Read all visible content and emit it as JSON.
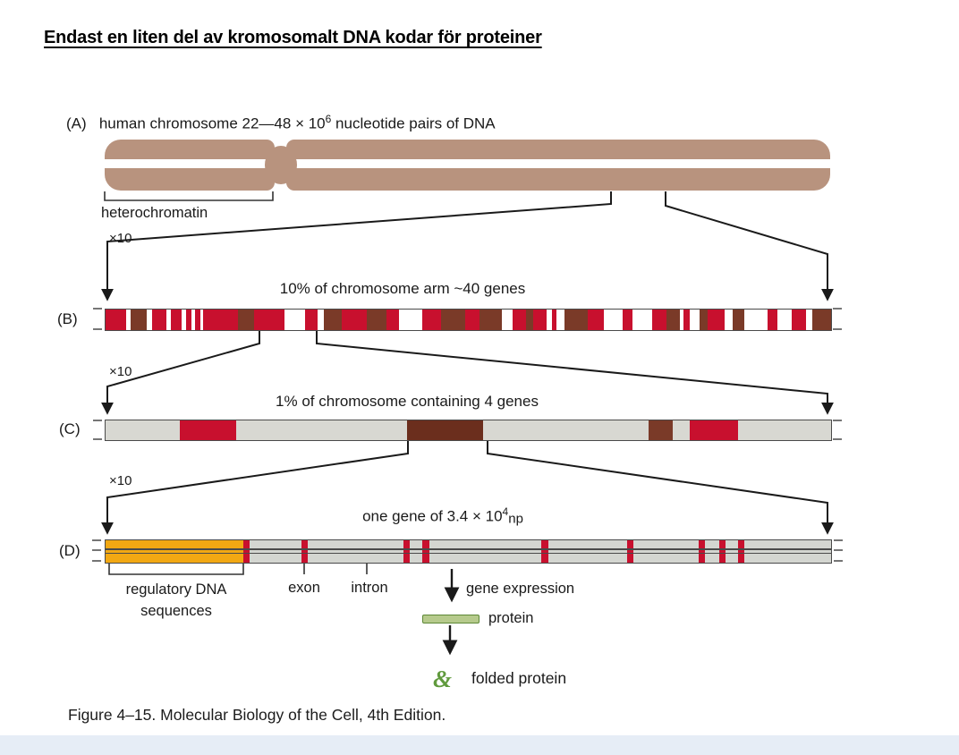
{
  "title": "Endast en liten del av kromosomalt DNA kodar för proteiner",
  "caption": "Figure 4–15. Molecular Biology of the Cell, 4th Edition.",
  "colors": {
    "tan": "#b8937e",
    "red": "#c8102e",
    "brown": "#7a3a28",
    "darkbrown": "#6b2e1d",
    "white": "#ffffff",
    "gray": "#d8d8d2",
    "ltgray": "#d4d6d1",
    "orange": "#f2a813",
    "protein_fill": "#b6ca8c",
    "protein_edge": "#5d8836",
    "fold_green": "#609a3d"
  },
  "section_a": {
    "label": "(A)",
    "heading_prefix": "human chromosome 22—48 × 10",
    "heading_sup": "6",
    "heading_suffix": " nucleotide pairs of DNA",
    "heterochromatin_label": "heterochromatin"
  },
  "section_b": {
    "label": "(B)",
    "scale_label": "×10",
    "heading": "10% of chromosome arm ~40 genes",
    "bands": [
      [
        "red",
        25
      ],
      [
        "white",
        6
      ],
      [
        "brown",
        20
      ],
      [
        "white",
        6
      ],
      [
        "red",
        18
      ],
      [
        "white",
        5
      ],
      [
        "red",
        13
      ],
      [
        "white",
        6
      ],
      [
        "red",
        6
      ],
      [
        "white",
        5
      ],
      [
        "red",
        6
      ],
      [
        "white",
        4
      ],
      [
        "red",
        42
      ],
      [
        "brown",
        20
      ],
      [
        "red",
        38
      ],
      [
        "white",
        25
      ],
      [
        "red",
        15
      ],
      [
        "white",
        8
      ],
      [
        "brown",
        22
      ],
      [
        "red",
        30
      ],
      [
        "brown",
        25
      ],
      [
        "red",
        15
      ],
      [
        "white",
        28
      ],
      [
        "red",
        23
      ],
      [
        "brown",
        30
      ],
      [
        "red",
        18
      ],
      [
        "brown",
        27
      ],
      [
        "white",
        13
      ],
      [
        "red",
        17
      ],
      [
        "brown",
        8
      ],
      [
        "red",
        17
      ],
      [
        "white",
        7
      ],
      [
        "red",
        5
      ],
      [
        "white",
        10
      ],
      [
        "brown",
        28
      ],
      [
        "red",
        20
      ],
      [
        "white",
        23
      ],
      [
        "red",
        12
      ],
      [
        "white",
        25
      ],
      [
        "red",
        17
      ],
      [
        "brown",
        17
      ],
      [
        "white",
        4
      ],
      [
        "red",
        8
      ],
      [
        "white",
        12
      ],
      [
        "brown",
        10
      ],
      [
        "red",
        20
      ],
      [
        "white",
        10
      ],
      [
        "brown",
        15
      ],
      [
        "white",
        28
      ],
      [
        "red",
        12
      ],
      [
        "white",
        18
      ],
      [
        "red",
        17
      ],
      [
        "white",
        8
      ],
      [
        "brown",
        23
      ]
    ]
  },
  "section_c": {
    "label": "(C)",
    "scale_label": "×10",
    "heading": "1% of chromosome containing 4 genes",
    "bands": [
      [
        "gray",
        10.2
      ],
      [
        "red",
        7.8
      ],
      [
        "gray",
        23.6
      ],
      [
        "darkbrown",
        10.4
      ],
      [
        "gray",
        22.9
      ],
      [
        "brown",
        3.3
      ],
      [
        "gray",
        2.3
      ],
      [
        "red",
        6.7
      ],
      [
        "gray",
        12.8
      ]
    ]
  },
  "section_d": {
    "label": "(D)",
    "scale_label": "×10",
    "heading_prefix": "one gene of 3.4 × 10",
    "heading_sup": "4",
    "heading_suffix": "np",
    "regulatory_block_pct": 19.0,
    "exon_stripes_pct": [
      19.0,
      27.0,
      41.0,
      43.7,
      60.1,
      71.9,
      81.7,
      84.6,
      87.2
    ],
    "regulatory_label_line1": "regulatory DNA",
    "regulatory_label_line2": "sequences",
    "exon_label": "exon",
    "intron_label": "intron",
    "gene_expression_label": "gene expression",
    "protein_label": "protein",
    "folded_protein_label": "folded protein",
    "folded_icon_glyph": "&"
  }
}
